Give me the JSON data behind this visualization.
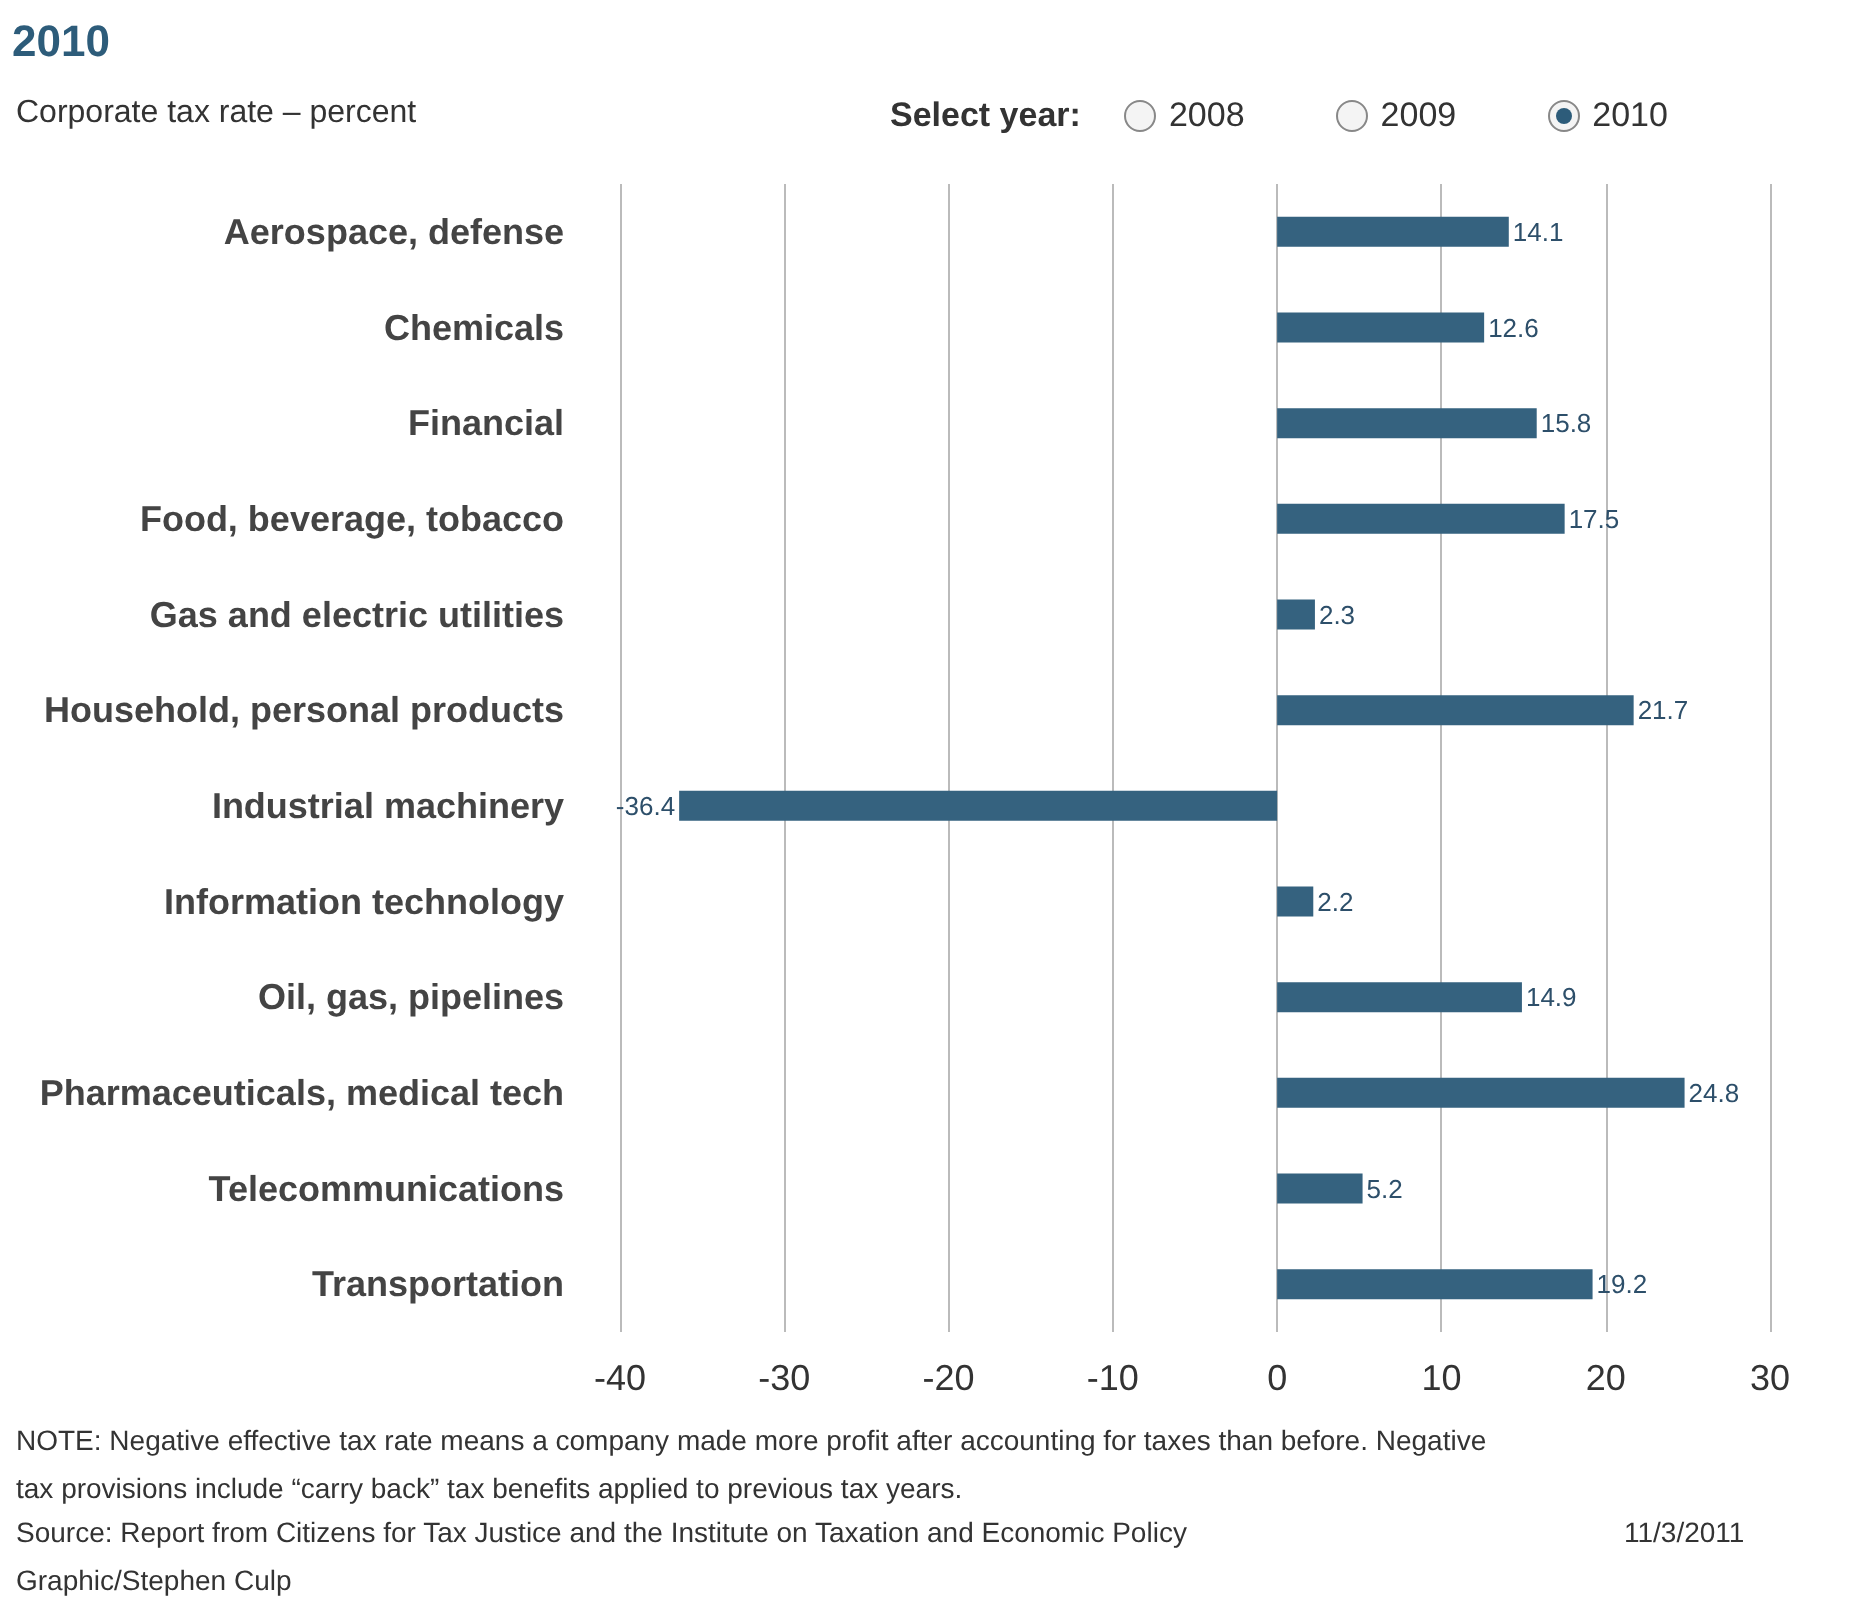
{
  "chart_data": {
    "type": "bar",
    "orientation": "horizontal",
    "title": "2010",
    "subtitle": "Corporate tax rate – percent",
    "categories": [
      "Aerospace, defense",
      "Chemicals",
      "Financial",
      "Food, beverage, tobacco",
      "Gas and electric utilities",
      "Household, personal products",
      "Industrial machinery",
      "Information technology",
      "Oil, gas, pipelines",
      "Pharmaceuticals, medical tech",
      "Telecommunications",
      "Transportation"
    ],
    "values": [
      14.1,
      12.6,
      15.8,
      17.5,
      2.3,
      21.7,
      -36.4,
      2.2,
      14.9,
      24.8,
      5.2,
      19.2
    ],
    "color": "#35627f",
    "data_labels": true,
    "grid": "x",
    "xlim": [
      -40,
      30
    ],
    "xticks": [
      -40,
      -30,
      -20,
      -10,
      0,
      10,
      20,
      30
    ],
    "annotations": [
      "Select year:",
      "2008",
      "2009",
      "2010",
      "NOTE: Negative effective tax rate means a company made more profit after accounting for taxes than before. Negative tax provisions include “carry back” tax benefits applied to previous tax years.",
      "Source: Report from Citizens for Tax Justice and the Institute on Taxation and Economic Policy",
      "11/3/2011",
      "Graphic/Stephen Culp"
    ]
  }
}
